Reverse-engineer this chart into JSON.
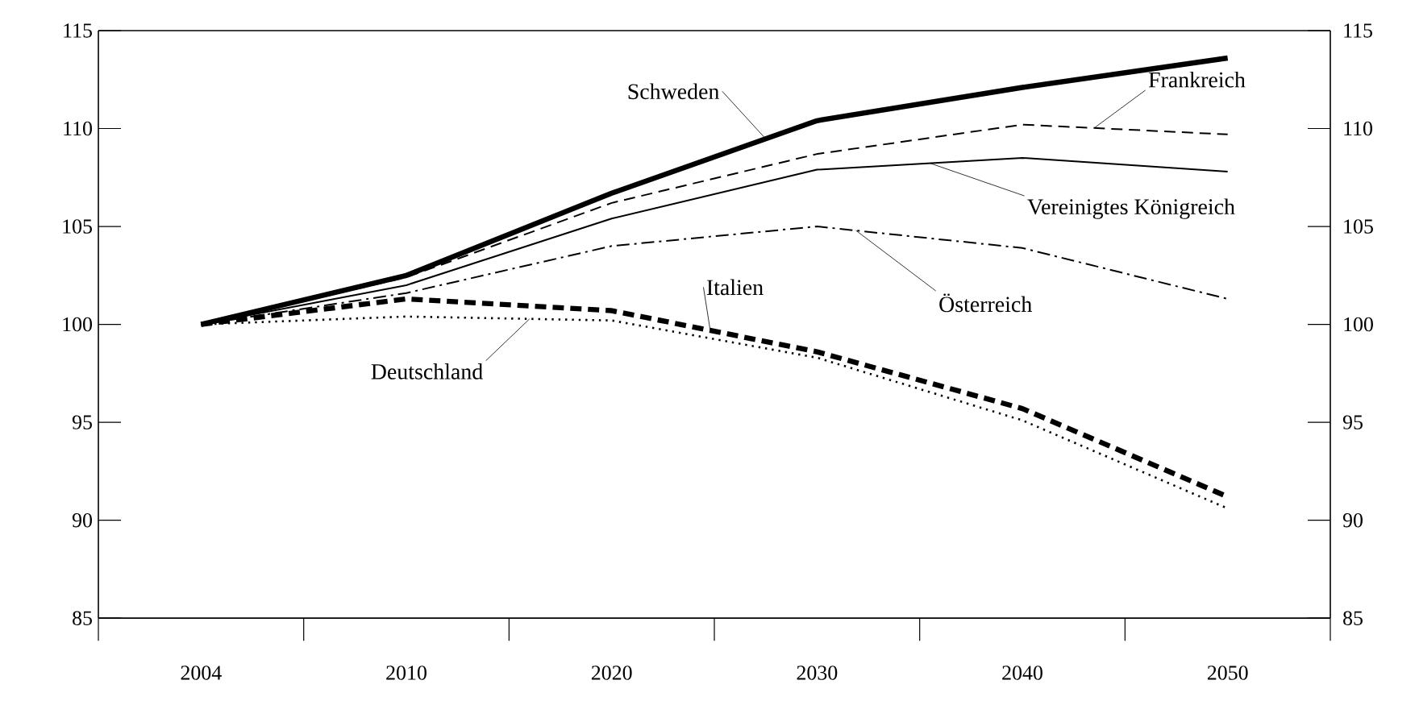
{
  "chart_data": {
    "type": "line",
    "categories": [
      "2004",
      "2010",
      "2020",
      "2030",
      "2040",
      "2050"
    ],
    "series": [
      {
        "name": "Schweden",
        "color": "#000000",
        "line_style": "solid",
        "values": [
          100,
          102.5,
          106.7,
          110.4,
          112.1,
          113.6
        ]
      },
      {
        "name": "Frankreich",
        "color": "#000000",
        "line_style": "dashed",
        "values": [
          100,
          102.4,
          106.2,
          108.7,
          110.2,
          109.7
        ]
      },
      {
        "name": "Vereinigtes Königreich",
        "color": "#000000",
        "line_style": "solid",
        "values": [
          100,
          102.0,
          105.4,
          107.9,
          108.5,
          107.8
        ]
      },
      {
        "name": "Österreich",
        "color": "#000000",
        "line_style": "dashdot",
        "values": [
          100,
          101.6,
          104.0,
          105.0,
          103.9,
          101.3
        ]
      },
      {
        "name": "Italien",
        "color": "#000000",
        "line_style": "dashed",
        "values": [
          100,
          101.3,
          100.7,
          98.6,
          95.7,
          91.2
        ]
      },
      {
        "name": "Deutschland",
        "color": "#000000",
        "line_style": "dotted",
        "values": [
          100,
          100.4,
          100.2,
          98.3,
          95.1,
          90.6
        ]
      }
    ],
    "ylim": [
      85,
      115
    ],
    "yticks": [
      85,
      90,
      95,
      100,
      105,
      110,
      115
    ],
    "y2lim": [
      85,
      115
    ],
    "y2ticks": [
      85,
      90,
      95,
      100,
      105,
      110,
      115
    ],
    "grid": false,
    "legend": false
  }
}
